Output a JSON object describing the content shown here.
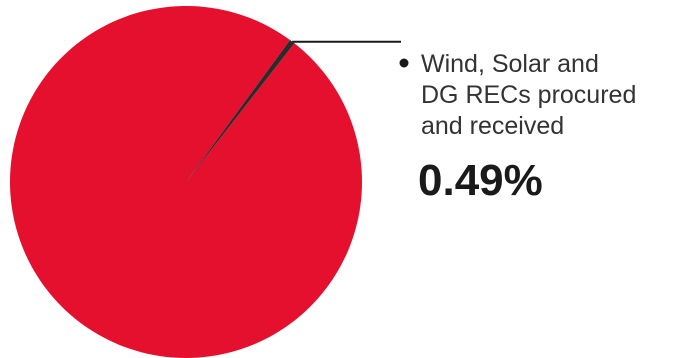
{
  "chart_data": {
    "type": "pie",
    "title": "",
    "slices": [
      {
        "label": "",
        "value": 99.51,
        "color": "#E4102E"
      },
      {
        "label": "Wind, Solar and DG RECs procured and received",
        "value": 0.49,
        "color": "#2b2b2b"
      }
    ],
    "callout": {
      "label_lines": [
        "Wind, Solar and",
        "DG RECs procured",
        "and received"
      ],
      "value_text": "0.49%"
    }
  }
}
